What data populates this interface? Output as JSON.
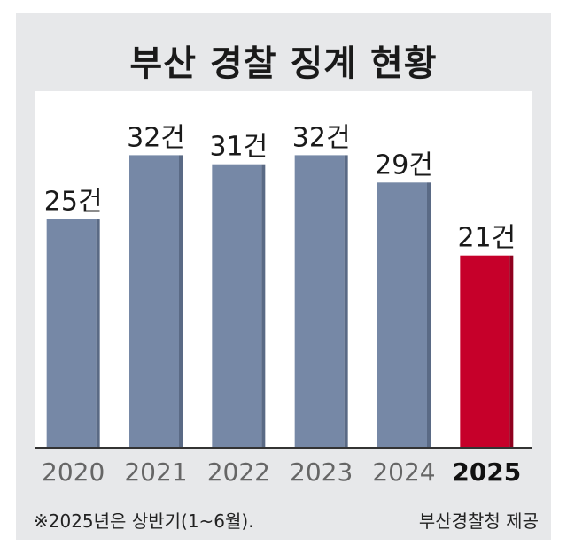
{
  "chart_data": {
    "type": "bar",
    "title": "부산 경찰 징계 현황",
    "categories": [
      "2020",
      "2021",
      "2022",
      "2023",
      "2024",
      "2025"
    ],
    "values": [
      25,
      32,
      31,
      32,
      29,
      21
    ],
    "value_labels": [
      "25건",
      "32건",
      "31건",
      "32건",
      "29건",
      "21건"
    ],
    "highlight_index": 5,
    "ylim": [
      0,
      40
    ],
    "grid": false,
    "xlabel": "",
    "ylabel": "",
    "colors": {
      "bar": "#7688a6",
      "bar_shadow": "#5a6a85",
      "highlight": "#c6002a",
      "highlight_shadow": "#8f001e",
      "axis_text": "#666666",
      "highlight_text": "#111111"
    }
  },
  "footer": {
    "note": "※2025년은 상반기(1~6월).",
    "source": "부산경찰청 제공"
  }
}
